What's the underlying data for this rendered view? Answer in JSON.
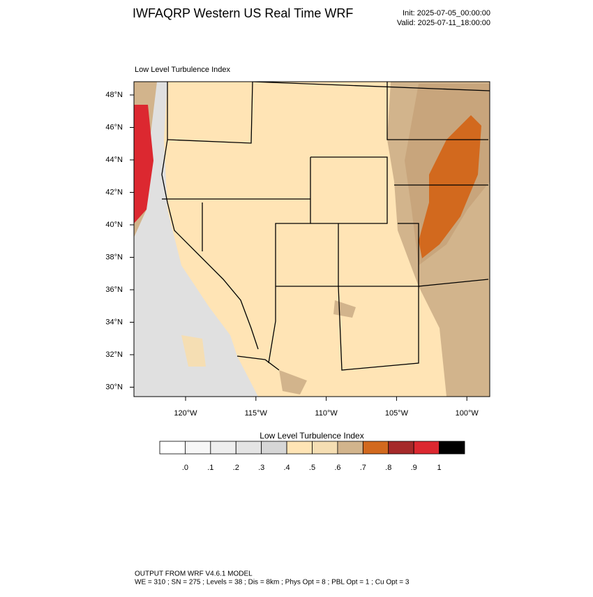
{
  "header": {
    "title": "IWFAQRP Western US Real Time WRF",
    "init": "Init: 2025-07-05_00:00:00",
    "valid": "Valid: 2025-07-11_18:00:00"
  },
  "map": {
    "field_title": "Low Level Turbulence Index",
    "lat_labels": [
      "48°N",
      "46°N",
      "44°N",
      "42°N",
      "40°N",
      "38°N",
      "36°N",
      "34°N",
      "32°N",
      "30°N"
    ],
    "lon_labels": [
      "120°W",
      "115°W",
      "110°W",
      "105°W",
      "100°W"
    ]
  },
  "colorbar": {
    "title": "Low Level Turbulence Index",
    "colors": [
      "#ffffff",
      "#f7f7f7",
      "#eeeeee",
      "#e4e4e4",
      "#d6d6d6",
      "#ffe4b5",
      "#f5deb3",
      "#d2b48c",
      "#d2691e",
      "#a52a2a",
      "#dc2830",
      "#000000"
    ],
    "labels": [
      ".0",
      ".1",
      ".2",
      ".3",
      ".4",
      ".5",
      ".6",
      ".7",
      ".8",
      ".9",
      "1"
    ]
  },
  "footer": {
    "line1": "OUTPUT FROM WRF V4.6.1 MODEL",
    "line2": "WE = 310 ; SN = 275 ; Levels = 38 ; Dis = 8km ; Phys Opt = 8 ; PBL Opt = 1 ; Cu Opt = 3"
  }
}
